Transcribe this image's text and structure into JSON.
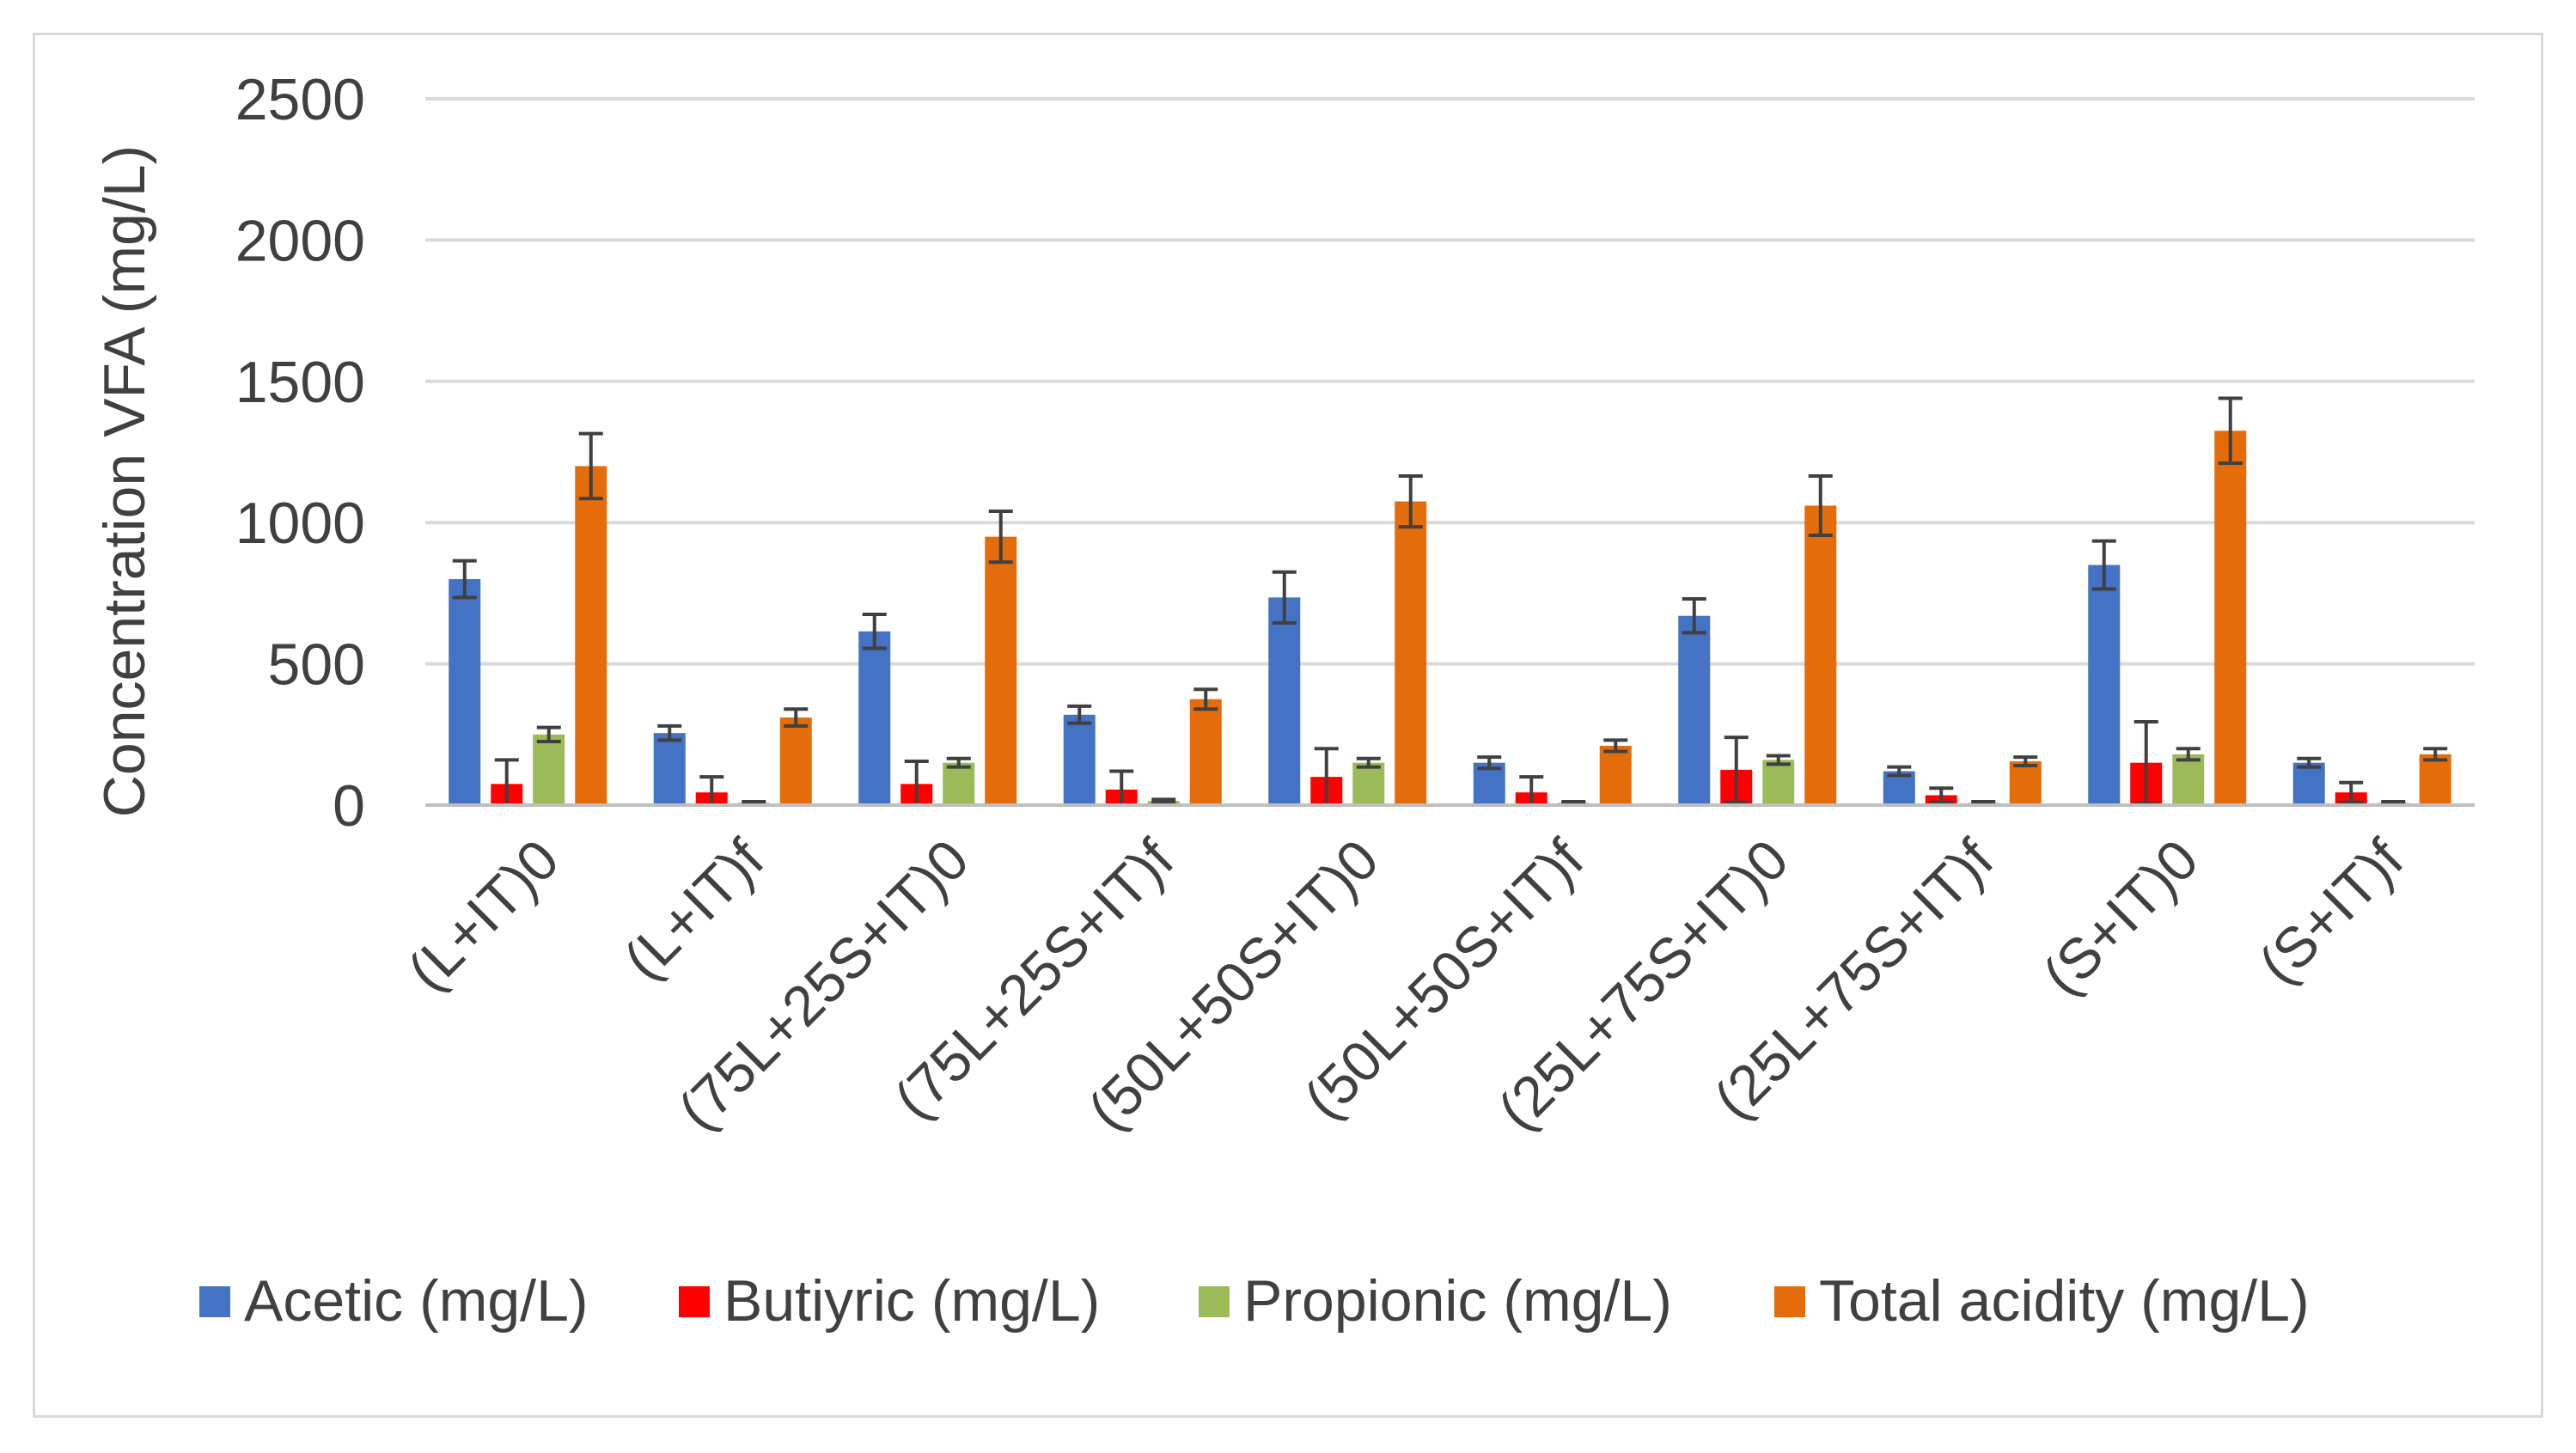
{
  "chart_data": {
    "type": "bar",
    "title": "",
    "xlabel": "",
    "ylabel": "Concentration VFA (mg/L)",
    "ylim": [
      0,
      2500
    ],
    "yticks": [
      0,
      500,
      1000,
      1500,
      2000,
      2500
    ],
    "grid": true,
    "legend_position": "bottom",
    "categories": [
      "(L+IT)0",
      "(L+IT)f",
      "(75L+25S+IT)0",
      "(75L+25S+IT)f",
      "(50L+50S+IT)0",
      "(50L+50S+IT)f",
      "(25L+75S+IT)0",
      "(25L+75S+IT)f",
      "(S+IT)0",
      "(S+IT)f"
    ],
    "series": [
      {
        "name": "Acetic (mg/L)",
        "color": "#4472c4",
        "values": [
          800,
          255,
          615,
          320,
          735,
          150,
          670,
          120,
          850,
          150
        ],
        "errors": [
          65,
          25,
          60,
          30,
          90,
          20,
          60,
          15,
          85,
          15
        ]
      },
      {
        "name": "Butiyric (mg/L)",
        "color": "#ff0000",
        "values": [
          75,
          45,
          75,
          55,
          100,
          45,
          125,
          35,
          150,
          45
        ],
        "errors": [
          85,
          55,
          80,
          65,
          100,
          55,
          115,
          25,
          145,
          35
        ]
      },
      {
        "name": "Propionic (mg/L)",
        "color": "#9bbb59",
        "values": [
          250,
          8,
          150,
          15,
          150,
          8,
          160,
          8,
          180,
          8
        ],
        "errors": [
          25,
          4,
          15,
          5,
          15,
          4,
          15,
          4,
          20,
          4
        ]
      },
      {
        "name": "Total acidity (mg/L)",
        "color": "#e46c0a",
        "values": [
          1200,
          310,
          950,
          375,
          1075,
          210,
          1060,
          155,
          1325,
          180
        ],
        "errors": [
          115,
          30,
          90,
          35,
          90,
          20,
          105,
          15,
          115,
          20
        ]
      }
    ]
  }
}
